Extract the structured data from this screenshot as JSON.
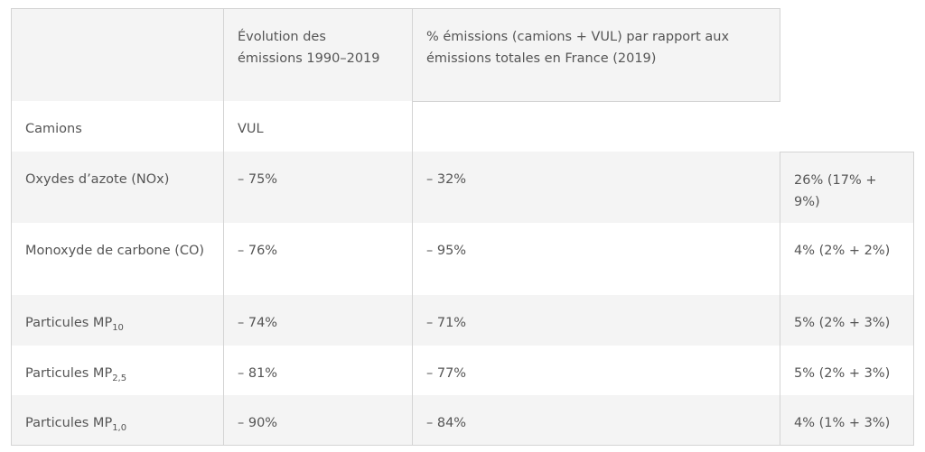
{
  "table": {
    "header": {
      "col1": "",
      "col2": "Évolution des émissions 1990–2019",
      "col3": "% émissions (camions + VUL) par rapport aux émissions totales en France (2019)"
    },
    "subheader": {
      "col1": "Camions",
      "col2": "VUL"
    },
    "rows": [
      {
        "pollutant": "Oxydes d’azote (NOx)",
        "subscript": "",
        "camions": "– 75%",
        "vul": "– 32%",
        "share": "26% (17% + 9%)"
      },
      {
        "pollutant": "Monoxyde de carbone (CO)",
        "subscript": "",
        "camions": "– 76%",
        "vul": "– 95%",
        "share": "4% (2% + 2%)"
      },
      {
        "pollutant": "Particules MP",
        "subscript": "10",
        "camions": "– 74%",
        "vul": "– 71%",
        "share": "5% (2% + 3%)"
      },
      {
        "pollutant": "Particules MP",
        "subscript": "2,5",
        "camions": "– 81%",
        "vul": "– 77%",
        "share": "5% (2% + 3%)"
      },
      {
        "pollutant": "Particules MP",
        "subscript": "1,0",
        "camions": "– 90%",
        "vul": "– 84%",
        "share": "4% (1% + 3%)"
      }
    ]
  }
}
